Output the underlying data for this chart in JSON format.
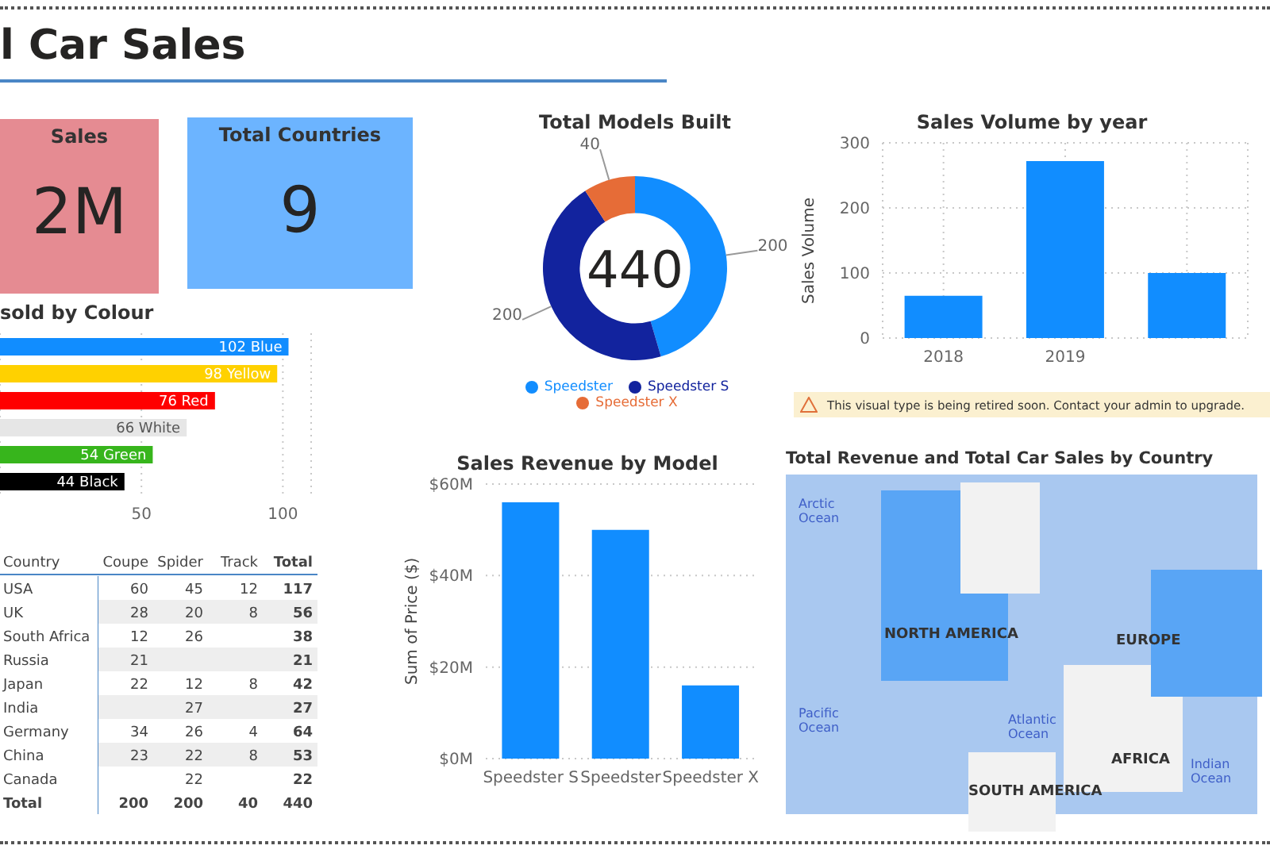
{
  "chart_data": [
    {
      "type": "other",
      "title": "l Car Sales"
    },
    {
      "type": "other",
      "title": "Sales",
      "annotations": [
        "2M"
      ]
    },
    {
      "type": "other",
      "title": "Total Countries",
      "annotations": [
        "9"
      ]
    },
    {
      "type": "bar",
      "orientation": "horizontal",
      "title": "sold by Colour",
      "categories": [
        "Blue",
        "Yellow",
        "Red",
        "White",
        "Green",
        "Black"
      ],
      "values": [
        102,
        98,
        76,
        66,
        54,
        44
      ],
      "colors": [
        "#118dff",
        "#ffd100",
        "#ff0000",
        "#e6e6e6",
        "#37b51c",
        "#000000"
      ],
      "data_labels": true,
      "xlim": [
        0,
        110
      ],
      "xticks": [
        50,
        100
      ],
      "grid": "x",
      "tick_labels": "x"
    },
    {
      "type": "heatmap",
      "ylabel": "Country",
      "categories": [
        "Coupe",
        "Spider",
        "Track",
        "Total"
      ],
      "y_categories": [
        "USA",
        "UK",
        "South Africa",
        "Russia",
        "Japan",
        "India",
        "Germany",
        "China",
        "Canada",
        "Total"
      ],
      "cells": [
        [
          60,
          45,
          12,
          117
        ],
        [
          28,
          20,
          8,
          56
        ],
        [
          12,
          26,
          null,
          38
        ],
        [
          21,
          null,
          null,
          21
        ],
        [
          22,
          12,
          8,
          42
        ],
        [
          null,
          27,
          null,
          27
        ],
        [
          34,
          26,
          4,
          64
        ],
        [
          23,
          22,
          8,
          53
        ],
        [
          null,
          22,
          null,
          22
        ],
        [
          200,
          200,
          40,
          440
        ]
      ],
      "data_labels": true
    },
    {
      "type": "donut",
      "title": "Total Models Built",
      "categories": [
        "Speedster",
        "Speedster S",
        "Speedster X"
      ],
      "values": [
        200,
        200,
        40
      ],
      "colors": [
        "#118dff",
        "#12239e",
        "#e66c37"
      ],
      "data_labels": true,
      "legend": "bottom",
      "annotations": [
        "440"
      ]
    },
    {
      "type": "bar",
      "title": "Sales Volume by year",
      "ylabel": "Sales Volume",
      "categories": [
        "2018",
        "2019",
        null
      ],
      "values": [
        65,
        272,
        100
      ],
      "color": "#118dff",
      "ylim": [
        0,
        300
      ],
      "yticks": [
        0,
        100,
        200,
        300
      ],
      "grid": true,
      "annotations": [
        "This visual type is being retired soon. Contact your admin to upgrade."
      ]
    },
    {
      "type": "bar",
      "title": "Sales Revenue by Model",
      "ylabel": "Sum of Price ($)",
      "categories": [
        "Speedster S",
        "Speedster",
        "Speedster X"
      ],
      "values": [
        56,
        50,
        16
      ],
      "color": "#118dff",
      "ylim": [
        0,
        60
      ],
      "yticks": [
        {
          "value": 0,
          "label": "$0M"
        },
        {
          "value": 20,
          "label": "$20M"
        },
        {
          "value": 40,
          "label": "$40M"
        },
        {
          "value": 60,
          "label": "$60M"
        }
      ],
      "grid": "y"
    },
    {
      "type": "other",
      "title": "Total Revenue and Total Car Sales by Country",
      "annotations": [
        "Arctic Ocean",
        "NORTH AMERICA",
        "EUROPE",
        "Pacific Ocean",
        "Atlantic Ocean",
        "AFRICA",
        "SOUTH AMERICA",
        "Indian Ocean"
      ]
    }
  ]
}
